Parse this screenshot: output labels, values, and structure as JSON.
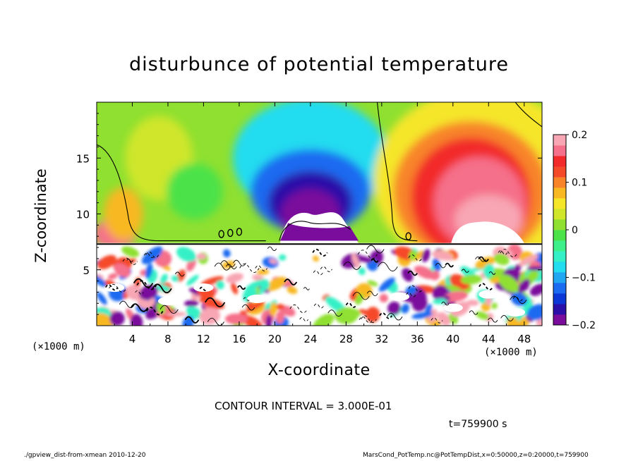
{
  "chart_data": {
    "type": "heatmap",
    "title": "disturbunce of potential temperature",
    "xlabel": "X-coordinate",
    "ylabel": "Z-coordinate",
    "x_unit_label": "(×1000 m)",
    "x_ticks": [
      4,
      8,
      12,
      16,
      20,
      24,
      28,
      32,
      36,
      40,
      44,
      48
    ],
    "y_ticks": [
      5,
      10,
      15
    ],
    "xlim": [
      0,
      50
    ],
    "ylim": [
      0,
      20
    ],
    "colorbar": {
      "ticks": [
        "0.2",
        "0.1",
        "0",
        "−0.1",
        "−0.2"
      ],
      "tick_values": [
        0.2,
        0.1,
        0,
        -0.1,
        -0.2
      ],
      "range": [
        -0.2,
        0.2
      ],
      "colors": [
        "#7a0d9c",
        "#2a10a8",
        "#0a37d6",
        "#1a6bf0",
        "#21a7f2",
        "#22dcf0",
        "#34f0c6",
        "#3ef08a",
        "#4be24a",
        "#8fe030",
        "#cfe62a",
        "#f5e62a",
        "#f8b822",
        "#f8842a",
        "#f54a2a",
        "#f22a2a",
        "#f5708a",
        "#f8a6b4"
      ]
    },
    "grid": false,
    "legend": "colorbar-right"
  },
  "contour_interval": "CONTOUR INTERVAL = 3.000E-01",
  "time_label": "t=759900 s",
  "footer_left": "./gpview_dist-from-xmean   2010-12-20",
  "footer_right": "MarsCond_PotTemp.nc@PotTempDist,x=0:50000,z=0:20000,t=759900"
}
